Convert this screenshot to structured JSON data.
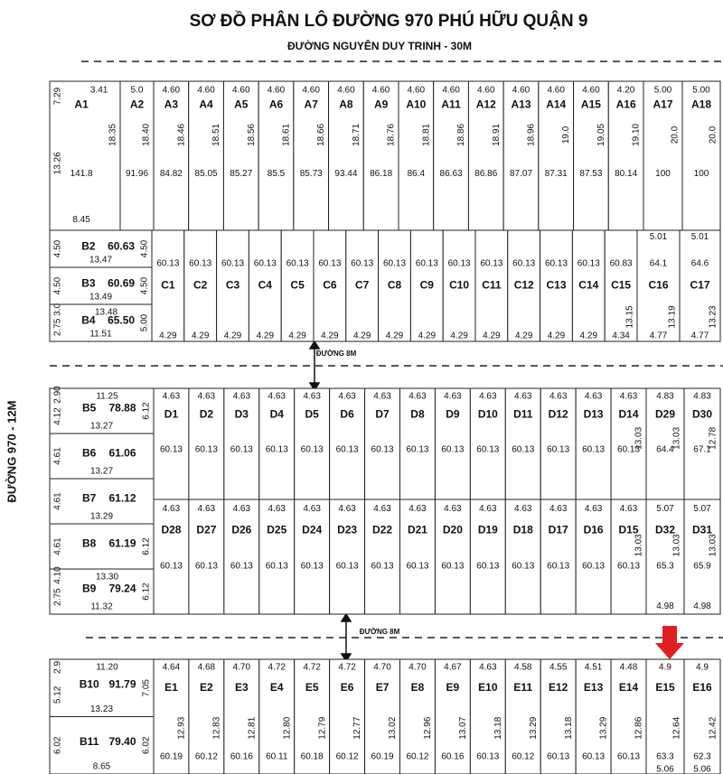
{
  "header": {
    "title": "SƠ ĐỒ PHÂN LÔ ĐƯỜNG 970 PHÚ HỮU QUẬN 9",
    "subtitle": "ĐƯỜNG NGUYỄN DUY TRINH - 30M"
  },
  "side_road": "ĐƯỜNG 970 - 12M",
  "roads": [
    "ĐƯỜNG 8M",
    "ĐƯỜNG 8M"
  ],
  "blocks": [
    {
      "lots": [
        {
          "name": "A1",
          "front": "3.41",
          "side": [
            "7.29",
            "13.26"
          ],
          "area": "141.8",
          "depth": "18.35",
          "back": "8.45"
        },
        {
          "name": "A2",
          "front": "5.0",
          "area": "91.96",
          "depth": "18.40"
        },
        {
          "name": "A3",
          "front": "4.60",
          "area": "84.82",
          "depth": "18.46"
        },
        {
          "name": "A4",
          "front": "4.60",
          "area": "85.05",
          "depth": "18.51"
        },
        {
          "name": "A5",
          "front": "4.60",
          "area": "85.27",
          "depth": "18.56"
        },
        {
          "name": "A6",
          "front": "4.60",
          "area": "85.5",
          "depth": "18.61"
        },
        {
          "name": "A7",
          "front": "4.60",
          "area": "85.73",
          "depth": "18.66"
        },
        {
          "name": "A8",
          "front": "4.60",
          "area": "93.44",
          "depth": "18.71"
        },
        {
          "name": "A9",
          "front": "4.60",
          "area": "86.18",
          "depth": "18.76"
        },
        {
          "name": "A10",
          "front": "4.60",
          "area": "86.4",
          "depth": "18.81"
        },
        {
          "name": "A11",
          "front": "4.60",
          "area": "86.63",
          "depth": "18.86"
        },
        {
          "name": "A12",
          "front": "4.60",
          "area": "86.86",
          "depth": "18.91"
        },
        {
          "name": "A13",
          "front": "4.60",
          "area": "87.07",
          "depth": "18.96"
        },
        {
          "name": "A14",
          "front": "4.60",
          "area": "87.31",
          "depth": "19.0"
        },
        {
          "name": "A15",
          "front": "4.60",
          "area": "87.53",
          "depth": "19.05"
        },
        {
          "name": "A16",
          "front": "4.20",
          "area": "80.14",
          "depth": "19.10"
        },
        {
          "name": "A17",
          "front": "5.00",
          "area": "100",
          "depth": "20.0"
        },
        {
          "name": "A18",
          "front": "5.00",
          "area": "100",
          "depth": "20.0"
        }
      ]
    },
    {
      "lots": [
        {
          "name": "B2",
          "side": [
            "4.50"
          ],
          "area": "60.63",
          "back": "13.47",
          "depth": "4.50"
        },
        {
          "name": "B3",
          "side": [
            "4.50"
          ],
          "area": "60.69",
          "back": "13.49",
          "depth": "4.50"
        },
        {
          "name": "B4",
          "front": "13.48",
          "side": [
            "3.0",
            "2.75"
          ],
          "area": "65.50",
          "back": "11.51",
          "depth": "5.00"
        }
      ]
    },
    {
      "lots": [
        {
          "name": "C1",
          "area": "60.13",
          "back": "4.29"
        },
        {
          "name": "C2",
          "area": "60.13",
          "back": "4.29"
        },
        {
          "name": "C3",
          "area": "60.13",
          "back": "4.29"
        },
        {
          "name": "C4",
          "area": "60.13",
          "back": "4.29"
        },
        {
          "name": "C5",
          "area": "60.13",
          "back": "4.29"
        },
        {
          "name": "C6",
          "area": "60.13",
          "back": "4.29"
        },
        {
          "name": "C7",
          "area": "60.13",
          "back": "4.29"
        },
        {
          "name": "C8",
          "area": "60.13",
          "back": "4.29"
        },
        {
          "name": "C9",
          "area": "60.13",
          "back": "4.29"
        },
        {
          "name": "C10",
          "area": "60.13",
          "back": "4.29"
        },
        {
          "name": "C11",
          "area": "60.13",
          "back": "4.29"
        },
        {
          "name": "C12",
          "area": "60.13",
          "back": "4.29"
        },
        {
          "name": "C13",
          "area": "60.13",
          "back": "4.29"
        },
        {
          "name": "C14",
          "area": "60.13",
          "back": "4.29"
        },
        {
          "name": "C15",
          "area": "60.83",
          "depth": "13.15",
          "back": "4.34"
        },
        {
          "name": "C16",
          "front": "5.01",
          "area": "64.1",
          "depth": "13.19",
          "back": "4.77"
        },
        {
          "name": "C17",
          "front": "5.01",
          "area": "64.6",
          "depth": "13.23",
          "back": "4.77"
        }
      ]
    },
    {
      "lots": [
        {
          "name": "B5",
          "front": "11.25",
          "side": [
            "2.90",
            "4.12"
          ],
          "area": "78.88",
          "back": "13.27",
          "depth": "6.12"
        },
        {
          "name": "B6",
          "side": [
            "4.61"
          ],
          "area": "61.06",
          "back": "13.27"
        },
        {
          "name": "B7",
          "side": [
            "4.61"
          ],
          "area": "61.12",
          "back": "13.29"
        },
        {
          "name": "B8",
          "side": [
            "4.61"
          ],
          "area": "61.19",
          "depth": "6.12"
        },
        {
          "name": "B9",
          "front": "13.30",
          "side": [
            "4.10",
            "2.75"
          ],
          "area": "79.24",
          "back": "11.32",
          "depth": "6.12"
        }
      ]
    },
    {
      "lots": [
        {
          "name": "D1",
          "front": "4.63",
          "area": "60.13"
        },
        {
          "name": "D2",
          "front": "4.63",
          "area": "60.13"
        },
        {
          "name": "D3",
          "front": "4.63",
          "area": "60.13"
        },
        {
          "name": "D4",
          "front": "4.63",
          "area": "60.13"
        },
        {
          "name": "D5",
          "front": "4.63",
          "area": "60.13"
        },
        {
          "name": "D6",
          "front": "4.63",
          "area": "60.13"
        },
        {
          "name": "D7",
          "front": "4.63",
          "area": "60.13"
        },
        {
          "name": "D8",
          "front": "4.63",
          "area": "60.13"
        },
        {
          "name": "D9",
          "front": "4.63",
          "area": "60.13"
        },
        {
          "name": "D10",
          "front": "4.63",
          "area": "60.13"
        },
        {
          "name": "D11",
          "front": "4.63",
          "area": "60.13"
        },
        {
          "name": "D12",
          "front": "4.63",
          "area": "60.13"
        },
        {
          "name": "D13",
          "front": "4.63",
          "area": "60.13"
        },
        {
          "name": "D14",
          "front": "4.63",
          "area": "60.13",
          "depth": "13.03"
        },
        {
          "name": "D29",
          "front": "4.83",
          "area": "64.4",
          "depth": "13.03"
        },
        {
          "name": "D30",
          "front": "4.83",
          "area": "67.1",
          "depth": "12.78"
        }
      ]
    },
    {
      "lots": [
        {
          "name": "D28",
          "front": "4.63",
          "area": "60.13"
        },
        {
          "name": "D27",
          "front": "4.63",
          "area": "60.13"
        },
        {
          "name": "D26",
          "front": "4.63",
          "area": "60.13"
        },
        {
          "name": "D25",
          "front": "4.63",
          "area": "60.13"
        },
        {
          "name": "D24",
          "front": "4.63",
          "area": "60.13"
        },
        {
          "name": "D23",
          "front": "4.63",
          "area": "60.13"
        },
        {
          "name": "D22",
          "front": "4.63",
          "area": "60.13"
        },
        {
          "name": "D21",
          "front": "4.63",
          "area": "60.13"
        },
        {
          "name": "D20",
          "front": "4.63",
          "area": "60.13"
        },
        {
          "name": "D19",
          "front": "4.63",
          "area": "60.13"
        },
        {
          "name": "D18",
          "front": "4.63",
          "area": "60.13"
        },
        {
          "name": "D17",
          "front": "4.63",
          "area": "60.13"
        },
        {
          "name": "D16",
          "front": "4.63",
          "area": "60.13"
        },
        {
          "name": "D15",
          "front": "4.63",
          "area": "60.13",
          "depth": "13.03"
        },
        {
          "name": "D32",
          "front": "5.07",
          "area": "65.3",
          "depth": "13.03",
          "back": "4.98"
        },
        {
          "name": "D31",
          "front": "5.07",
          "area": "65.9",
          "depth": "13.03",
          "back": "4.98"
        }
      ]
    },
    {
      "lots": [
        {
          "name": "B10",
          "front": "11.20",
          "side": [
            "2.9",
            "5.12"
          ],
          "area": "91.79",
          "back": "13.23",
          "depth": "7.05"
        },
        {
          "name": "B11",
          "side": [
            "6.02"
          ],
          "area": "79.40",
          "back": "8.65",
          "depth": "6.02"
        }
      ]
    },
    {
      "lots": [
        {
          "name": "E1",
          "front": "4.64",
          "area": "60.19",
          "depth": "12.93"
        },
        {
          "name": "E2",
          "front": "4.68",
          "area": "60.12",
          "depth": "12.83"
        },
        {
          "name": "E3",
          "front": "4.70",
          "area": "60.16",
          "depth": "12.81"
        },
        {
          "name": "E4",
          "front": "4.72",
          "area": "60.11",
          "depth": "12.80"
        },
        {
          "name": "E5",
          "front": "4.72",
          "area": "60.18",
          "depth": "12.79"
        },
        {
          "name": "E6",
          "front": "4.72",
          "area": "60.12",
          "depth": "12.77"
        },
        {
          "name": "E7",
          "front": "4.70",
          "area": "60.19",
          "depth": "13.02"
        },
        {
          "name": "E8",
          "front": "4.70",
          "area": "60.12",
          "depth": "12.96"
        },
        {
          "name": "E9",
          "front": "4.67",
          "area": "60.16",
          "depth": "13.07"
        },
        {
          "name": "E10",
          "front": "4.63",
          "area": "60.13",
          "depth": "13.18"
        },
        {
          "name": "E11",
          "front": "4.58",
          "area": "60.12",
          "depth": "13.29"
        },
        {
          "name": "E12",
          "front": "4.55",
          "area": "60.13",
          "depth": "13.18"
        },
        {
          "name": "E13",
          "front": "4.51",
          "area": "60.13",
          "depth": "13.29"
        },
        {
          "name": "E14",
          "front": "4.48",
          "area": "60.13",
          "depth": "12.86"
        },
        {
          "name": "E15",
          "front": "4.9",
          "area": "63.3",
          "depth": "12.64",
          "back": "5.06"
        },
        {
          "name": "E16",
          "front": "4.9",
          "area": "62.3",
          "depth": "12.42",
          "back": "5.06"
        }
      ]
    }
  ]
}
